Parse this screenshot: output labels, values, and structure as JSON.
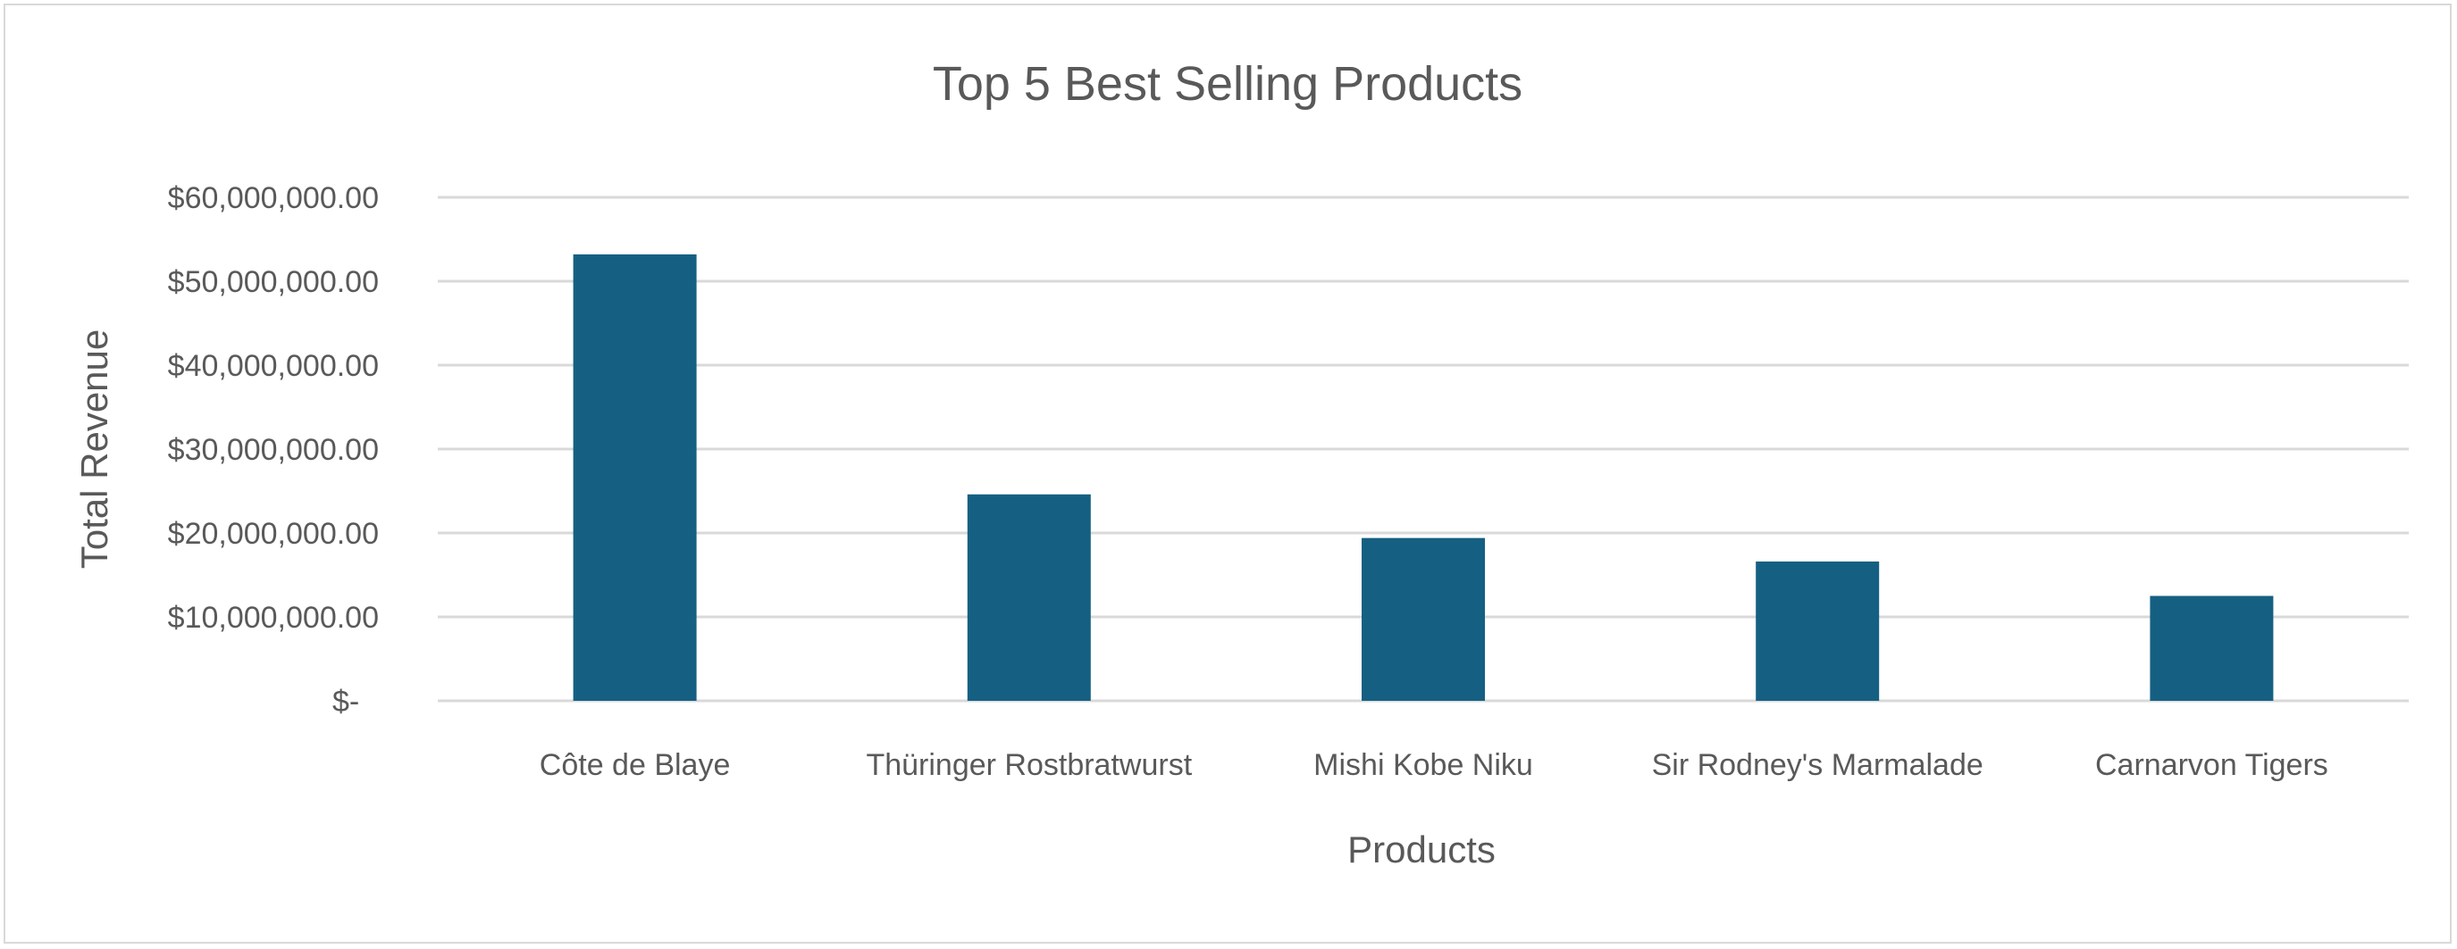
{
  "chart_data": {
    "type": "bar",
    "title": "Top 5 Best Selling Products",
    "xlabel": "Products",
    "ylabel": "Total Revenue",
    "categories": [
      "Côte de Blaye",
      "Thüringer Rostbratwurst",
      "Mishi Kobe Niku",
      "Sir Rodney's Marmalade",
      "Carnarvon Tigers"
    ],
    "values": [
      53200000,
      24600000,
      19400000,
      16600000,
      12500000
    ],
    "ylim": [
      0,
      60000000
    ],
    "yticks": [
      0,
      10000000,
      20000000,
      30000000,
      40000000,
      50000000,
      60000000
    ],
    "ytick_labels": [
      "$-",
      "$10,000,000.00",
      "$20,000,000.00",
      "$30,000,000.00",
      "$40,000,000.00",
      "$50,000,000.00",
      "$60,000,000.00"
    ],
    "grid": true,
    "legend": "none",
    "bar_color": "#156082"
  }
}
